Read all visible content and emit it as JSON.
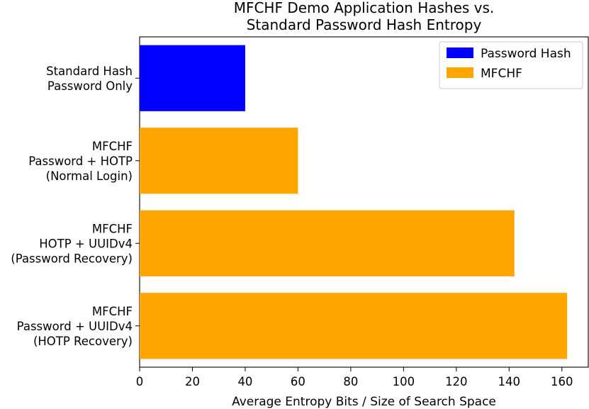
{
  "chart_data": {
    "type": "bar",
    "orientation": "horizontal",
    "title": "MFCHF Demo Application Hashes vs.\nStandard Password Hash Entropy",
    "xlabel": "Average Entropy Bits / Size of Search Space",
    "ylabel": "",
    "xlim": [
      0,
      170
    ],
    "xticks": [
      0,
      20,
      40,
      60,
      80,
      100,
      120,
      140,
      160
    ],
    "grid": false,
    "legend_position": "top-right",
    "categories": [
      "Standard Hash\nPassword Only",
      "MFCHF\nPassword + HOTP\n(Normal Login)",
      "MFCHF\nHOTP + UUIDv4\n(Password Recovery)",
      "MFCHF\nPassword + UUIDv4\n(HOTP Recovery)"
    ],
    "values": [
      40,
      60,
      142,
      162
    ],
    "bar_series": [
      "Password Hash",
      "MFCHF",
      "MFCHF",
      "MFCHF"
    ],
    "series": [
      {
        "name": "Password Hash",
        "color": "#0000ff"
      },
      {
        "name": "MFCHF",
        "color": "#ffa500"
      }
    ]
  }
}
